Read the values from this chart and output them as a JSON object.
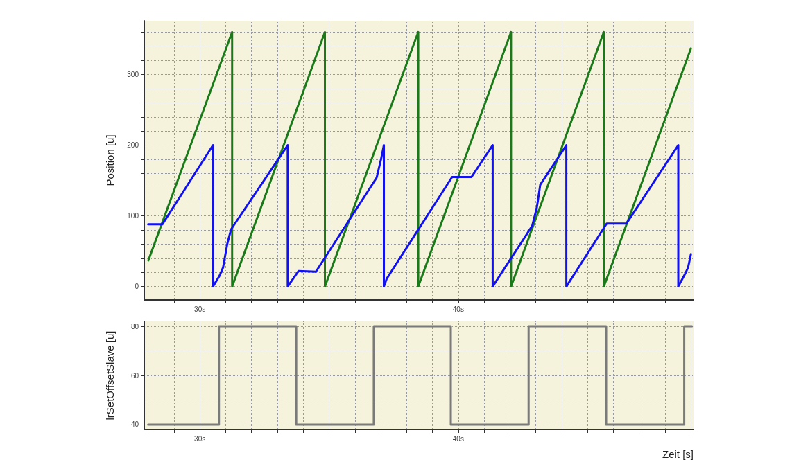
{
  "chart_data": [
    {
      "type": "line",
      "ylabel": "Position [u]",
      "xlim": [
        27.85,
        49.1
      ],
      "ylim": [
        -19,
        376
      ],
      "grid": true,
      "marker": "none",
      "line_style": "solid",
      "xticks": [
        {
          "value": 28,
          "label": null
        },
        {
          "value": 29,
          "label": null
        },
        {
          "value": 30,
          "label": "30s"
        },
        {
          "value": 31,
          "label": null
        },
        {
          "value": 32,
          "label": null
        },
        {
          "value": 33,
          "label": null
        },
        {
          "value": 34,
          "label": null
        },
        {
          "value": 35,
          "label": null
        },
        {
          "value": 36,
          "label": null
        },
        {
          "value": 37,
          "label": null
        },
        {
          "value": 38,
          "label": null
        },
        {
          "value": 39,
          "label": null
        },
        {
          "value": 40,
          "label": "40s"
        },
        {
          "value": 41,
          "label": null
        },
        {
          "value": 42,
          "label": null
        },
        {
          "value": 43,
          "label": null
        },
        {
          "value": 44,
          "label": null
        },
        {
          "value": 45,
          "label": null
        },
        {
          "value": 46,
          "label": null
        },
        {
          "value": 47,
          "label": null
        },
        {
          "value": 48,
          "label": null
        },
        {
          "value": 49,
          "label": null
        }
      ],
      "yticks": [
        0,
        {
          "value": 20,
          "label": null
        },
        {
          "value": 40,
          "label": null
        },
        {
          "value": 60,
          "label": null
        },
        {
          "value": 80,
          "label": null
        },
        100,
        {
          "value": 120,
          "label": null
        },
        {
          "value": 140,
          "label": null
        },
        {
          "value": 160,
          "label": null
        },
        {
          "value": 180,
          "label": null
        },
        200,
        {
          "value": 220,
          "label": null
        },
        {
          "value": 240,
          "label": null
        },
        {
          "value": 260,
          "label": null
        },
        {
          "value": 280,
          "label": null
        },
        300,
        {
          "value": 320,
          "label": null
        },
        {
          "value": 340,
          "label": null
        },
        {
          "value": 360,
          "label": null
        }
      ],
      "series": [
        {
          "color": "#1a7a1a",
          "x": [
            28.01,
            31.25,
            31.25,
            34.84,
            34.84,
            38.45,
            38.45,
            42.04,
            42.04,
            45.63,
            45.63,
            49.0
          ],
          "values": [
            37,
            360,
            0,
            360,
            0,
            360,
            0,
            360,
            0,
            360,
            0,
            337
          ]
        },
        {
          "color": "#1010f0",
          "x": [
            28.0,
            28.55,
            30.51,
            30.51,
            30.76,
            30.9,
            31.06,
            31.21,
            33.4,
            33.4,
            33.82,
            34.49,
            36.84,
            37.01,
            37.12,
            37.12,
            37.23,
            39.76,
            40.51,
            41.33,
            41.33,
            42.86,
            43.04,
            43.17,
            44.18,
            44.18,
            45.74,
            46.5,
            48.51,
            48.51,
            48.76,
            48.89,
            49.0
          ],
          "values": [
            88,
            88,
            200,
            0,
            15,
            27,
            60,
            81,
            200,
            0,
            22,
            21,
            154,
            180,
            200,
            0,
            11,
            155,
            155,
            200,
            0,
            86,
            112,
            144,
            200,
            0,
            89,
            89,
            200,
            0,
            17,
            27,
            46
          ]
        }
      ]
    },
    {
      "type": "step",
      "ylabel": "lrSetOffsetSlave [u]",
      "xlabel": "Zeit [s]",
      "xlim": [
        27.85,
        49.1
      ],
      "ylim": [
        38,
        82
      ],
      "grid": true,
      "marker": "none",
      "line_style": "solid",
      "xticks": [
        {
          "value": 28,
          "label": null
        },
        {
          "value": 29,
          "label": null
        },
        {
          "value": 30,
          "label": "30s"
        },
        {
          "value": 31,
          "label": null
        },
        {
          "value": 32,
          "label": null
        },
        {
          "value": 33,
          "label": null
        },
        {
          "value": 34,
          "label": null
        },
        {
          "value": 35,
          "label": null
        },
        {
          "value": 36,
          "label": null
        },
        {
          "value": 37,
          "label": null
        },
        {
          "value": 38,
          "label": null
        },
        {
          "value": 39,
          "label": null
        },
        {
          "value": 40,
          "label": "40s"
        },
        {
          "value": 41,
          "label": null
        },
        {
          "value": 42,
          "label": null
        },
        {
          "value": 43,
          "label": null
        },
        {
          "value": 44,
          "label": null
        },
        {
          "value": 45,
          "label": null
        },
        {
          "value": 46,
          "label": null
        },
        {
          "value": 47,
          "label": null
        },
        {
          "value": 48,
          "label": null
        },
        {
          "value": 49,
          "label": null
        }
      ],
      "yticks": [
        40,
        {
          "value": 50,
          "label": null
        },
        60,
        {
          "value": 70,
          "label": null
        },
        80
      ],
      "series": [
        {
          "color": "#7a7a7a",
          "x": [
            28.0,
            30.74,
            33.73,
            36.73,
            39.71,
            42.72,
            45.72,
            48.74,
            49.04
          ],
          "values": [
            40,
            80,
            40,
            80,
            40,
            80,
            40,
            80,
            80
          ]
        }
      ]
    }
  ]
}
